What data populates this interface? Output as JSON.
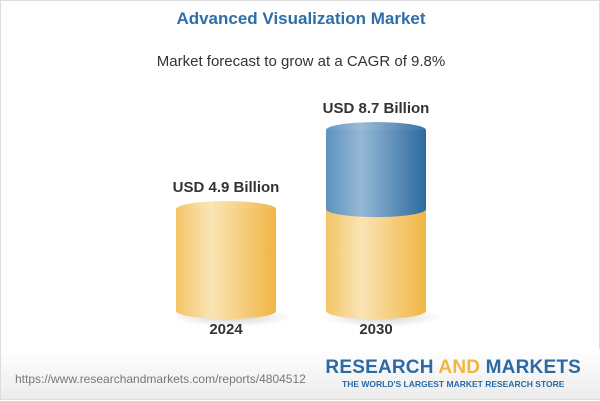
{
  "chart_data": {
    "type": "bar",
    "title": "Advanced Visualization Market",
    "subtitle": "Market forecast to grow at a CAGR of 9.8%",
    "categories": [
      "2024",
      "2030"
    ],
    "values": [
      4.9,
      8.7
    ],
    "data_labels": [
      "USD 4.9 Billion",
      "USD 8.7 Billion"
    ],
    "unit": "USD Billion",
    "style": "3d-cylinder",
    "grid": false,
    "colors": {
      "base": "#f2c35a",
      "growth": "#3f7db0"
    }
  },
  "footer": {
    "url": "https://www.researchandmarkets.com/reports/4804512",
    "logo_part1": "RESEARCH ",
    "logo_part2": "AND",
    "logo_part3": " MARKETS",
    "tagline": "THE WORLD'S LARGEST MARKET RESEARCH STORE"
  }
}
